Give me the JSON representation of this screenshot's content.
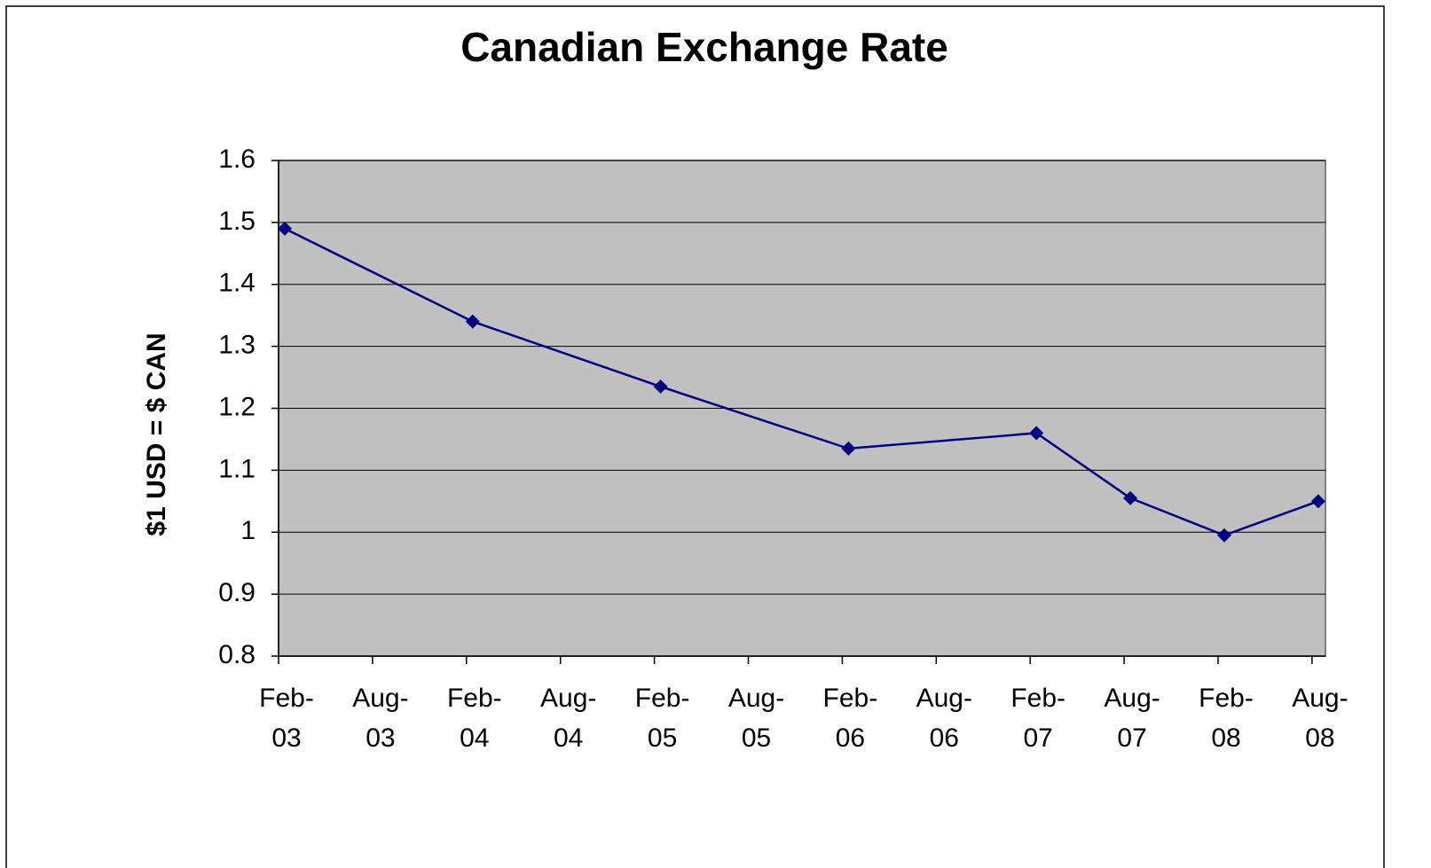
{
  "chart_data": {
    "type": "line",
    "title": "Canadian Exchange Rate",
    "y_label": "$1 USD = $ CAN",
    "categories": [
      "Feb-03",
      "Aug-03",
      "Feb-04",
      "Aug-04",
      "Feb-05",
      "Aug-05",
      "Feb-06",
      "Aug-06",
      "Feb-07",
      "Aug-07",
      "Feb-08",
      "Aug-08"
    ],
    "x": [
      "Feb-03",
      "Feb-04",
      "Feb-05",
      "Feb-06",
      "Feb-07",
      "Aug-07",
      "Feb-08",
      "Aug-08"
    ],
    "series": [
      {
        "name": "Exchange Rate",
        "color": "#000080",
        "values": [
          1.49,
          1.34,
          1.235,
          1.135,
          1.16,
          1.055,
          0.995,
          1.05
        ]
      }
    ],
    "ylim": [
      0.8,
      1.6
    ],
    "yticks": [
      0.8,
      0.9,
      1,
      1.1,
      1.2,
      1.3,
      1.4,
      1.5,
      1.6
    ],
    "grid": true,
    "plot_background": "#c0c0c0"
  }
}
